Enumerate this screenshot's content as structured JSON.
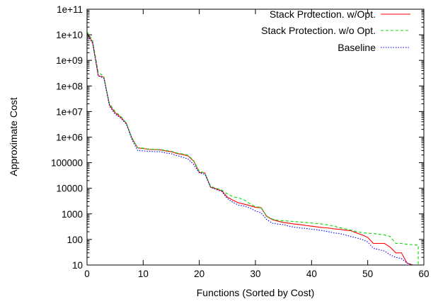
{
  "chart_data": {
    "type": "line",
    "title": "",
    "xlabel": "Functions (Sorted by Cost)",
    "ylabel": "Approximate Cost",
    "xlim": [
      0,
      60
    ],
    "ylim": [
      10,
      100000000000
    ],
    "yscale": "log",
    "x_ticks": [
      0,
      10,
      20,
      30,
      40,
      50,
      60
    ],
    "x_tick_labels": [
      "0",
      "10",
      "20",
      "30",
      "40",
      "50",
      "60"
    ],
    "y_ticks": [
      10,
      100,
      1000,
      10000,
      100000,
      1000000,
      10000000,
      100000000,
      1000000000,
      10000000000,
      100000000000
    ],
    "y_tick_labels": [
      "10",
      "100",
      "1000",
      "10000",
      "100000",
      "1e+06",
      "1e+07",
      "1e+08",
      "1e+09",
      "1e+10",
      "1e+11"
    ],
    "grid": false,
    "legend_position": "top-right",
    "series": [
      {
        "name": "Stack Protection. w/Opt.",
        "color": "#ff0000",
        "dash": "solid",
        "x": [
          0,
          1,
          2,
          3,
          4,
          5,
          6,
          7,
          8,
          9,
          10,
          11,
          12,
          13,
          14,
          15,
          16,
          17,
          18,
          19,
          20,
          21,
          22,
          23,
          24,
          25,
          26,
          27,
          28,
          29,
          30,
          31,
          32,
          33,
          34,
          35,
          36,
          37,
          38,
          39,
          40,
          41,
          42,
          43,
          44,
          45,
          46,
          47,
          48,
          49,
          50,
          51,
          52,
          53,
          54,
          55,
          56,
          57,
          58
        ],
        "y": [
          12000000000,
          5000000000,
          250000000,
          220000000,
          18000000,
          9000000,
          6000000,
          3500000,
          900000,
          380000,
          360000,
          330000,
          325000,
          320000,
          290000,
          270000,
          230000,
          210000,
          185000,
          115000,
          42000,
          40000,
          11000,
          9500,
          8000,
          4500,
          3400,
          2700,
          2400,
          2100,
          1800,
          1750,
          800,
          600,
          520,
          460,
          430,
          400,
          380,
          350,
          330,
          310,
          290,
          280,
          260,
          250,
          230,
          220,
          180,
          150,
          120,
          70,
          70,
          70,
          50,
          30,
          30,
          12,
          10
        ]
      },
      {
        "name": "Stack Protection. w/o Opt.",
        "color": "#00dd00",
        "dash": "dashed",
        "x": [
          0,
          1,
          2,
          3,
          4,
          5,
          6,
          7,
          8,
          9,
          10,
          11,
          12,
          13,
          14,
          15,
          16,
          17,
          18,
          19,
          20,
          21,
          22,
          23,
          24,
          25,
          26,
          27,
          28,
          29,
          30,
          31,
          32,
          33,
          34,
          35,
          36,
          37,
          38,
          39,
          40,
          41,
          42,
          43,
          44,
          45,
          46,
          47,
          48,
          49,
          50,
          51,
          52,
          53,
          54,
          55,
          56,
          57,
          58,
          59,
          59
        ],
        "y": [
          13000000000,
          6000000000,
          350000000,
          230000000,
          20000000,
          10000000,
          6500000,
          3600000,
          950000,
          390000,
          370000,
          340000,
          330000,
          325000,
          300000,
          280000,
          240000,
          220000,
          195000,
          120000,
          45000,
          40000,
          12000,
          10000,
          8500,
          6000,
          4700,
          4200,
          3500,
          2500,
          1900,
          1800,
          820,
          620,
          560,
          540,
          520,
          500,
          480,
          460,
          440,
          420,
          400,
          370,
          330,
          290,
          260,
          230,
          200,
          185,
          175,
          170,
          160,
          150,
          130,
          70,
          70,
          65,
          62,
          60,
          10
        ]
      },
      {
        "name": "Baseline",
        "color": "#0000ff",
        "dash": "dotted",
        "x": [
          0,
          1,
          2,
          3,
          4,
          5,
          6,
          7,
          8,
          9,
          10,
          11,
          12,
          13,
          14,
          15,
          16,
          17,
          18,
          19,
          20,
          21,
          22,
          23,
          24,
          25,
          26,
          27,
          28,
          29,
          30,
          31,
          32,
          33,
          34,
          35,
          36,
          37,
          38,
          39,
          40,
          41,
          42,
          43,
          44,
          45,
          46,
          47,
          48,
          49,
          50,
          51,
          52,
          53,
          54,
          55,
          56,
          57,
          58
        ],
        "y": [
          11000000000,
          4500000000,
          250000000,
          200000000,
          16000000,
          8000000,
          5500000,
          3200000,
          800000,
          300000,
          290000,
          280000,
          275000,
          270000,
          240000,
          225000,
          190000,
          165000,
          140000,
          85000,
          40000,
          35000,
          11000,
          9000,
          7500,
          4000,
          2800,
          2200,
          2000,
          1700,
          1300,
          1100,
          600,
          430,
          400,
          380,
          330,
          300,
          280,
          270,
          250,
          240,
          220,
          200,
          180,
          170,
          150,
          130,
          115,
          100,
          80,
          45,
          40,
          35,
          25,
          20,
          18,
          12,
          10
        ]
      }
    ]
  }
}
